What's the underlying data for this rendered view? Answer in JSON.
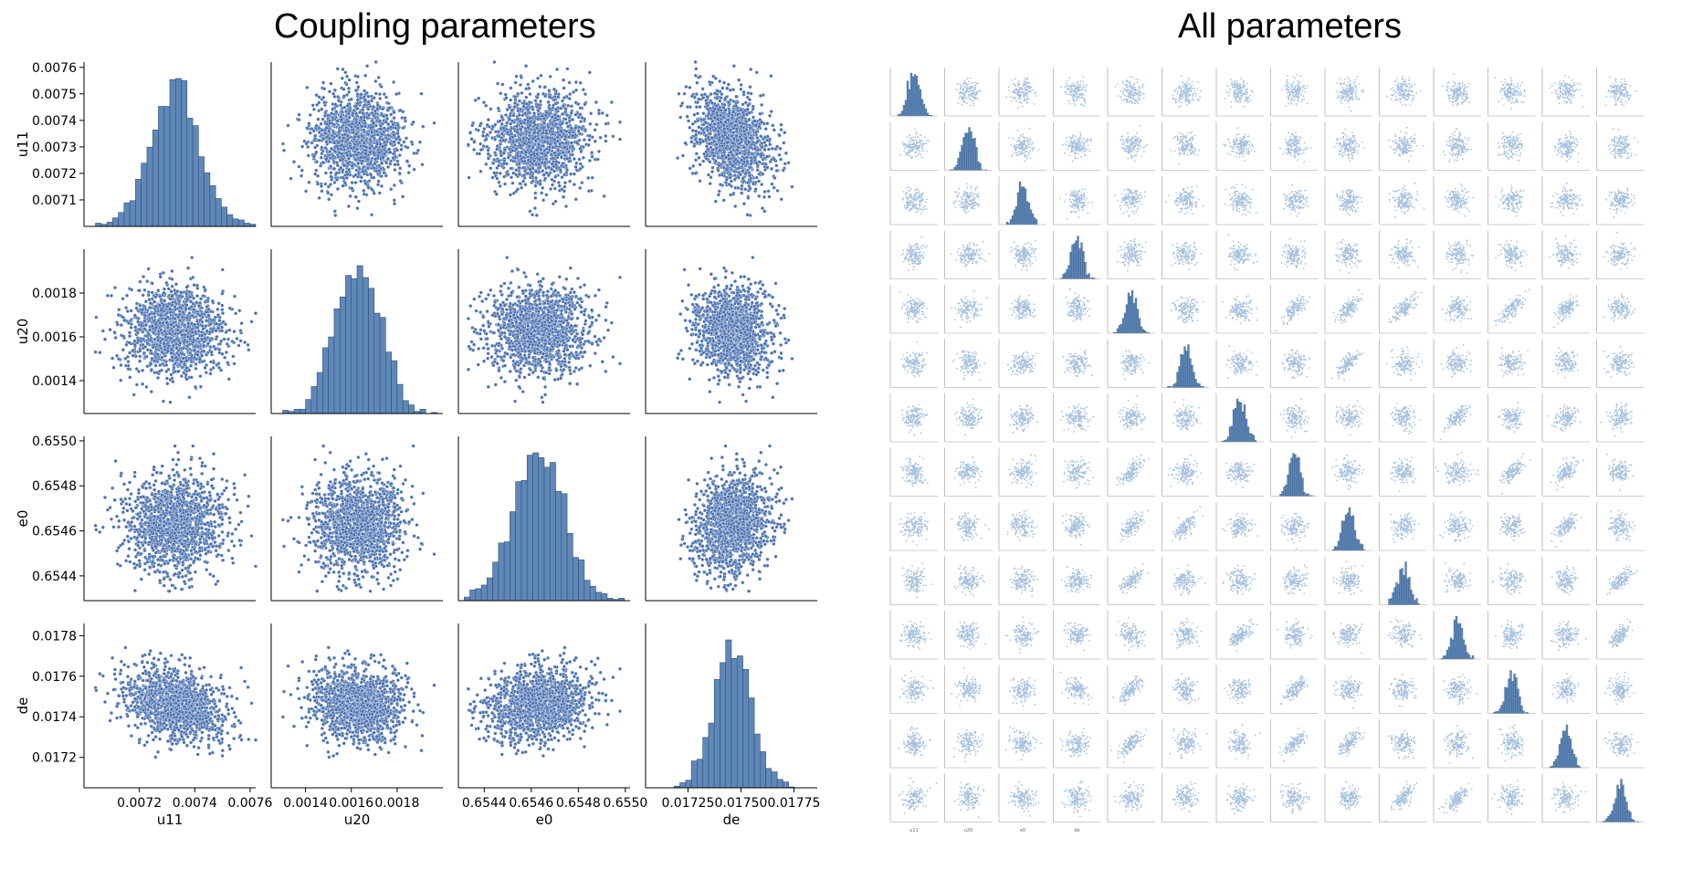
{
  "left_title": "Coupling parameters",
  "right_title": "All parameters",
  "chart_data": [
    {
      "type": "scatter",
      "subtype": "pairplot",
      "title": "Coupling parameters",
      "colors": {
        "marker": "#4c72b0",
        "bar": "#5f88b8",
        "edge": "#2f4f78"
      },
      "variables": [
        {
          "name": "u11",
          "mean": 0.00733,
          "sd": 9e-05,
          "range": [
            0.007,
            0.00762
          ],
          "ticks": [
            0.0071,
            0.0072,
            0.0073,
            0.0074,
            0.0075,
            0.0076
          ],
          "xticks": [
            0.0072,
            0.0074,
            0.0076
          ],
          "tick_labels": [
            "0.0071",
            "0.0072",
            "0.0073",
            "0.0074",
            "0.0075",
            "0.0076"
          ],
          "xtick_labels": [
            "0.0072",
            "0.0074",
            "0.0076"
          ]
        },
        {
          "name": "u20",
          "mean": 0.00163,
          "sd": 0.0001,
          "range": [
            0.00125,
            0.002
          ],
          "ticks": [
            0.0014,
            0.0016,
            0.0018
          ],
          "xticks": [
            0.0014,
            0.0016,
            0.0018
          ],
          "tick_labels": [
            "0.0014",
            "0.0016",
            "0.0018"
          ],
          "xtick_labels": [
            "0.0014",
            "0.0016",
            "0.0018"
          ]
        },
        {
          "name": "e0",
          "mean": 0.65463,
          "sd": 0.00011,
          "range": [
            0.65429,
            0.65502
          ],
          "ticks": [
            0.6544,
            0.6546,
            0.6548,
            0.655
          ],
          "xticks": [
            0.6544,
            0.6546,
            0.6548,
            0.655
          ],
          "tick_labels": [
            "0.6544",
            "0.6546",
            "0.6548",
            "0.6550"
          ],
          "xtick_labels": [
            "0.6544",
            "0.6546",
            "0.6548",
            "0.6550"
          ]
        },
        {
          "name": "de",
          "mean": 0.01746,
          "sd": 9e-05,
          "range": [
            0.01705,
            0.01786
          ],
          "ticks": [
            0.0172,
            0.0174,
            0.0176,
            0.0178
          ],
          "xticks": [
            0.01725,
            0.0175,
            0.01775
          ],
          "tick_labels": [
            "0.0172",
            "0.0174",
            "0.0176",
            "0.0178"
          ],
          "xtick_labels": [
            "0.01725",
            "0.01750",
            "0.01775"
          ]
        }
      ],
      "correlations": [
        [
          1.0,
          0.0,
          0.0,
          -0.28
        ],
        [
          0.0,
          1.0,
          0.0,
          -0.1
        ],
        [
          0.0,
          0.0,
          1.0,
          0.15
        ],
        [
          -0.28,
          -0.1,
          0.15,
          1.0
        ]
      ]
    },
    {
      "type": "scatter",
      "subtype": "pairplot",
      "title": "All parameters",
      "grid_size": 14,
      "colors": {
        "marker": "#a6c1de",
        "bar": "#5f88b8"
      },
      "x_axis_labels": [
        "u11",
        "u20",
        "e0",
        "de",
        "",
        "",
        "",
        "",
        "",
        "",
        "",
        "",
        "",
        ""
      ],
      "positive_correlations": [
        [
          4,
          7
        ],
        [
          4,
          8
        ],
        [
          4,
          9
        ],
        [
          4,
          11
        ],
        [
          4,
          12
        ],
        [
          5,
          8
        ],
        [
          6,
          10
        ],
        [
          7,
          11
        ],
        [
          7,
          12
        ],
        [
          8,
          12
        ],
        [
          9,
          13
        ],
        [
          10,
          13
        ]
      ]
    }
  ]
}
